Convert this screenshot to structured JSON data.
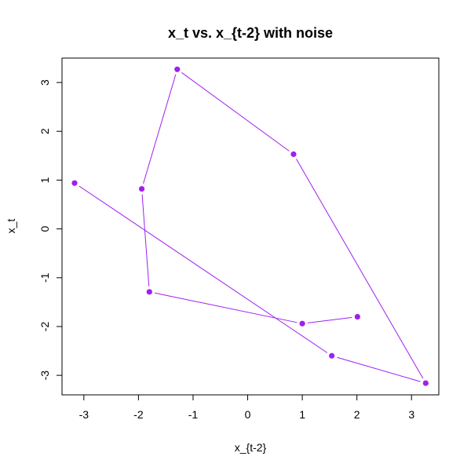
{
  "chart_data": {
    "type": "scatter",
    "title": "x_t vs. x_{t-2} with noise",
    "xlabel": "x_{t-2}",
    "ylabel": "x_t",
    "xlim": [
      -3.4,
      3.5
    ],
    "ylim": [
      -3.4,
      3.5
    ],
    "xticks": [
      -3,
      -2,
      -1,
      0,
      1,
      2,
      3
    ],
    "yticks": [
      -3,
      -2,
      -1,
      0,
      1,
      2,
      3
    ],
    "xtick_labels": [
      "-3",
      "-2",
      "-1",
      "0",
      "1",
      "2",
      "3"
    ],
    "ytick_labels": [
      "-3",
      "-2",
      "-1",
      "0",
      "1",
      "2",
      "3"
    ],
    "grid": false,
    "connect_points": true,
    "point_color": "#a020f0",
    "line_color": "#a020f0",
    "x": [
      2.01,
      1.0,
      -1.8,
      -1.94,
      -1.29,
      0.84,
      3.26,
      1.54,
      -3.17
    ],
    "y": [
      -1.8,
      -1.94,
      -1.29,
      0.82,
      3.27,
      1.53,
      -3.16,
      -2.6,
      0.94
    ]
  }
}
